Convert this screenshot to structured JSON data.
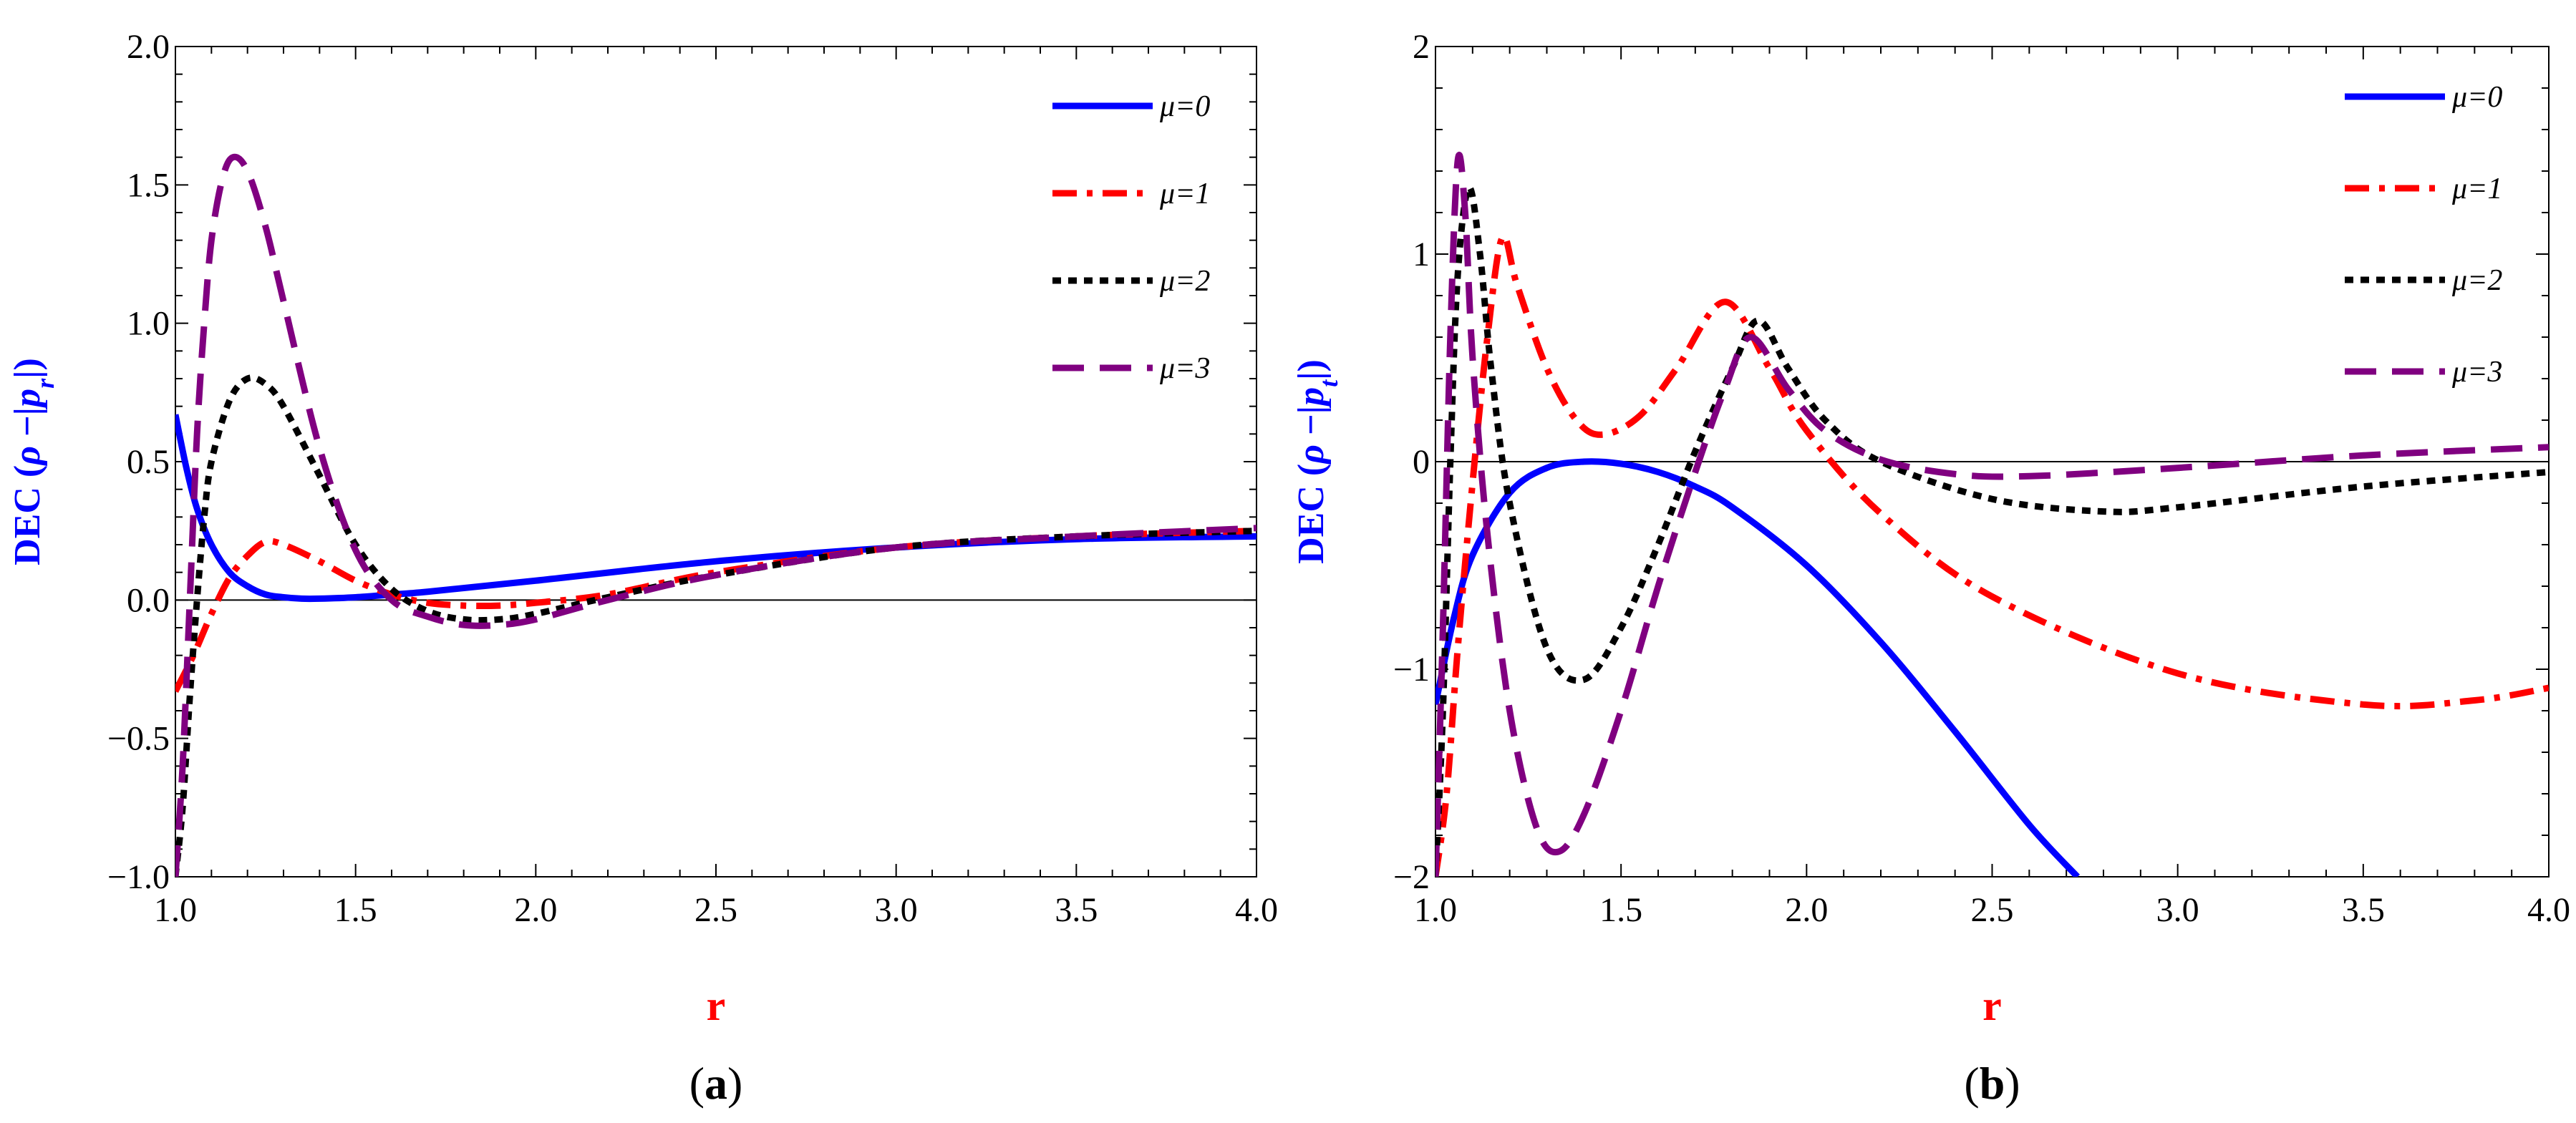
{
  "chart_data": [
    {
      "type": "line",
      "panel_label": "(a)",
      "xlabel": "r",
      "ylabel": "DEC (ρ −|p_r|)",
      "ylabel_parts": {
        "prefix": "DEC (",
        "rho": "ρ",
        "minus": " −|",
        "p": "p",
        "sub": "r",
        "suffix": "|)"
      },
      "xlim": [
        1.0,
        4.0
      ],
      "ylim": [
        -1.0,
        2.0
      ],
      "xticks": [
        1.0,
        1.5,
        2.0,
        2.5,
        3.0,
        3.5,
        4.0
      ],
      "xtick_labels": [
        "1.0",
        "1.5",
        "2.0",
        "2.5",
        "3.0",
        "3.5",
        "4.0"
      ],
      "yticks": [
        -1.0,
        -0.5,
        0.0,
        0.5,
        1.0,
        1.5,
        2.0
      ],
      "ytick_labels": [
        "−1.0",
        "−0.5",
        "0.0",
        "0.5",
        "1.0",
        "1.5",
        "2.0"
      ],
      "zero_line": true,
      "legend_position": "top-right",
      "series": [
        {
          "name": "μ=0",
          "color": "#0000ff",
          "style": "solid",
          "x": [
            1.0,
            1.03,
            1.06,
            1.1,
            1.15,
            1.2,
            1.25,
            1.3,
            1.35,
            1.4,
            1.5,
            1.6,
            1.7,
            2.0,
            2.5,
            3.0,
            3.5,
            4.0
          ],
          "y": [
            0.67,
            0.48,
            0.33,
            0.2,
            0.1,
            0.05,
            0.02,
            0.01,
            0.005,
            0.005,
            0.01,
            0.02,
            0.03,
            0.07,
            0.14,
            0.19,
            0.22,
            0.23
          ]
        },
        {
          "name": "μ=1",
          "color": "#ff0000",
          "style": "dashdot",
          "x": [
            1.0,
            1.05,
            1.1,
            1.15,
            1.2,
            1.25,
            1.3,
            1.4,
            1.5,
            1.6,
            1.7,
            1.8,
            1.9,
            2.0,
            2.2,
            2.5,
            3.0,
            3.5,
            4.0
          ],
          "y": [
            -0.33,
            -0.2,
            -0.05,
            0.08,
            0.16,
            0.21,
            0.2,
            0.14,
            0.07,
            0.02,
            -0.01,
            -0.02,
            -0.02,
            -0.01,
            0.02,
            0.1,
            0.19,
            0.23,
            0.25
          ]
        },
        {
          "name": "μ=2",
          "color": "#000000",
          "style": "dotted",
          "x": [
            1.0,
            1.02,
            1.04,
            1.06,
            1.08,
            1.1,
            1.15,
            1.2,
            1.25,
            1.3,
            1.4,
            1.5,
            1.6,
            1.7,
            1.8,
            1.9,
            2.0,
            2.2,
            2.5,
            3.0,
            3.5,
            4.0
          ],
          "y": [
            -1.0,
            -0.75,
            -0.35,
            0.0,
            0.3,
            0.5,
            0.72,
            0.8,
            0.78,
            0.7,
            0.45,
            0.2,
            0.04,
            -0.04,
            -0.07,
            -0.07,
            -0.05,
            0.01,
            0.09,
            0.19,
            0.23,
            0.25
          ]
        },
        {
          "name": "μ=3",
          "color": "#800080",
          "style": "dashed",
          "x": [
            1.0,
            1.02,
            1.04,
            1.06,
            1.08,
            1.1,
            1.13,
            1.16,
            1.2,
            1.25,
            1.3,
            1.4,
            1.5,
            1.6,
            1.7,
            1.8,
            1.9,
            2.0,
            2.2,
            2.5,
            3.0,
            3.5,
            4.0
          ],
          "y": [
            -1.0,
            -0.6,
            0.0,
            0.6,
            1.0,
            1.3,
            1.52,
            1.6,
            1.55,
            1.35,
            1.08,
            0.55,
            0.18,
            0.0,
            -0.06,
            -0.09,
            -0.09,
            -0.07,
            0.0,
            0.09,
            0.19,
            0.23,
            0.26
          ]
        }
      ]
    },
    {
      "type": "line",
      "panel_label": "(b)",
      "xlabel": "r",
      "ylabel": "DEC (ρ −|p_t|)",
      "ylabel_parts": {
        "prefix": "DEC (",
        "rho": "ρ",
        "minus": " −|",
        "p": "p",
        "sub": "t",
        "suffix": "|)"
      },
      "xlim": [
        1.0,
        4.0
      ],
      "ylim": [
        -2.0,
        2.0
      ],
      "xticks": [
        1.0,
        1.5,
        2.0,
        2.5,
        3.0,
        3.5,
        4.0
      ],
      "xtick_labels": [
        "1.0",
        "1.5",
        "2.0",
        "2.5",
        "3.0",
        "3.5",
        "4.0"
      ],
      "yticks": [
        -2,
        -1,
        0,
        1,
        2
      ],
      "ytick_labels": [
        "−2",
        "−1",
        "0",
        "1",
        "2"
      ],
      "zero_line": true,
      "legend_position": "top-right",
      "series": [
        {
          "name": "μ=0",
          "color": "#0000ff",
          "style": "solid",
          "x": [
            1.0,
            1.05,
            1.1,
            1.2,
            1.3,
            1.4,
            1.5,
            1.6,
            1.7,
            1.8,
            2.0,
            2.2,
            2.4,
            2.6,
            2.73
          ],
          "y": [
            -1.17,
            -0.75,
            -0.45,
            -0.15,
            -0.03,
            0.0,
            -0.01,
            -0.05,
            -0.12,
            -0.22,
            -0.5,
            -0.87,
            -1.3,
            -1.75,
            -2.0
          ]
        },
        {
          "name": "μ=1",
          "color": "#ff0000",
          "style": "dashdot",
          "x": [
            1.0,
            1.03,
            1.06,
            1.1,
            1.14,
            1.18,
            1.22,
            1.3,
            1.38,
            1.45,
            1.55,
            1.65,
            1.78,
            1.9,
            2.0,
            2.2,
            2.5,
            3.0,
            3.5,
            3.8,
            4.0
          ],
          "y": [
            -2.0,
            -1.6,
            -0.9,
            -0.1,
            0.6,
            1.08,
            0.85,
            0.45,
            0.2,
            0.13,
            0.22,
            0.45,
            0.77,
            0.45,
            0.15,
            -0.25,
            -0.65,
            -1.02,
            -1.17,
            -1.15,
            -1.09
          ]
        },
        {
          "name": "μ=2",
          "color": "#000000",
          "style": "dotted",
          "x": [
            1.0,
            1.02,
            1.04,
            1.06,
            1.09,
            1.12,
            1.15,
            1.2,
            1.3,
            1.4,
            1.5,
            1.6,
            1.7,
            1.8,
            1.87,
            1.95,
            2.05,
            2.2,
            2.5,
            2.8,
            3.0,
            3.5,
            4.0
          ],
          "y": [
            -2.0,
            -1.2,
            0.0,
            0.9,
            1.32,
            1.0,
            0.45,
            -0.2,
            -0.9,
            -1.05,
            -0.8,
            -0.4,
            0.05,
            0.45,
            0.68,
            0.45,
            0.2,
            0.0,
            -0.18,
            -0.24,
            -0.22,
            -0.12,
            -0.05
          ]
        },
        {
          "name": "μ=3",
          "color": "#800080",
          "style": "dashed",
          "x": [
            1.0,
            1.02,
            1.04,
            1.06,
            1.08,
            1.1,
            1.14,
            1.2,
            1.27,
            1.33,
            1.4,
            1.5,
            1.6,
            1.7,
            1.78,
            1.85,
            1.95,
            2.05,
            2.2,
            2.4,
            2.6,
            3.0,
            3.5,
            4.0
          ],
          "y": [
            -2.0,
            -0.8,
            0.6,
            1.45,
            1.2,
            0.5,
            -0.35,
            -1.2,
            -1.75,
            -1.88,
            -1.7,
            -1.2,
            -0.6,
            -0.05,
            0.35,
            0.6,
            0.35,
            0.15,
            0.01,
            -0.06,
            -0.07,
            -0.03,
            0.03,
            0.07
          ]
        }
      ]
    }
  ]
}
